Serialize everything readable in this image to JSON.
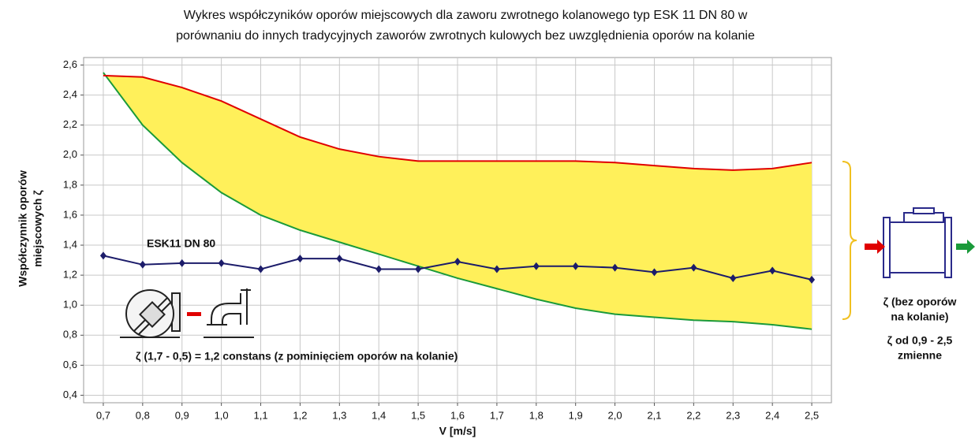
{
  "chart_data": {
    "type": "line",
    "title": [
      "Wykres współczyników oporów miejscowych dla zaworu zwrotnego kolanowego typ ESK 11 DN 80 w",
      "porównaniu do innych tradycyjnych zaworów zwrotnych kulowych bez uwzględnienia oporów na kolanie"
    ],
    "xlabel": "V [m/s]",
    "ylabel": [
      "Współczynnik oporów",
      "miejscowych ζ"
    ],
    "x": [
      0.7,
      0.8,
      0.9,
      1.0,
      1.1,
      1.2,
      1.3,
      1.4,
      1.5,
      1.6,
      1.7,
      1.8,
      1.9,
      2.0,
      2.1,
      2.2,
      2.3,
      2.4,
      2.5
    ],
    "series": [
      {
        "name": "ESK11 DN 80",
        "color": "#1c1c6a",
        "values": [
          1.33,
          1.27,
          1.28,
          1.28,
          1.24,
          1.31,
          1.31,
          1.24,
          1.24,
          1.29,
          1.24,
          1.26,
          1.26,
          1.25,
          1.22,
          1.25,
          1.18,
          1.23,
          1.17
        ]
      },
      {
        "color": "#e00000",
        "values": [
          2.53,
          2.52,
          2.45,
          2.36,
          2.24,
          2.12,
          2.04,
          1.99,
          1.96,
          1.96,
          1.96,
          1.96,
          1.96,
          1.95,
          1.93,
          1.91,
          1.9,
          1.91,
          1.95
        ]
      },
      {
        "color": "#1a9a3a",
        "values": [
          2.55,
          2.2,
          1.95,
          1.75,
          1.6,
          1.5,
          1.42,
          1.34,
          1.26,
          1.18,
          1.11,
          1.04,
          0.98,
          0.94,
          0.92,
          0.9,
          0.89,
          0.87,
          0.84
        ]
      }
    ],
    "range_fill_color": "#fff05a",
    "xlim": [
      0.65,
      2.55
    ],
    "xticks": [
      {
        "value": 0.7,
        "label": "0,7"
      },
      {
        "value": 0.8,
        "label": "0,8"
      },
      {
        "value": 0.9,
        "label": "0,9"
      },
      {
        "value": 1.0,
        "label": "1,0"
      },
      {
        "value": 1.1,
        "label": "1,1"
      },
      {
        "value": 1.2,
        "label": "1,2"
      },
      {
        "value": 1.3,
        "label": "1,3"
      },
      {
        "value": 1.4,
        "label": "1,4"
      },
      {
        "value": 1.5,
        "label": "1,5"
      },
      {
        "value": 1.6,
        "label": "1,6"
      },
      {
        "value": 1.7,
        "label": "1,7"
      },
      {
        "value": 1.8,
        "label": "1,8"
      },
      {
        "value": 1.9,
        "label": "1,9"
      },
      {
        "value": 2.0,
        "label": "2,0"
      },
      {
        "value": 2.1,
        "label": "2,1"
      },
      {
        "value": 2.2,
        "label": "2,2"
      },
      {
        "value": 2.3,
        "label": "2,3"
      },
      {
        "value": 2.4,
        "label": "2,4"
      },
      {
        "value": 2.5,
        "label": "2,5"
      }
    ],
    "ylim": [
      0.35,
      2.65
    ],
    "yticks": [
      {
        "value": 0.4,
        "label": "0,4"
      },
      {
        "value": 0.6,
        "label": "0,6"
      },
      {
        "value": 0.8,
        "label": "0,8"
      },
      {
        "value": 1.0,
        "label": "1,0"
      },
      {
        "value": 1.2,
        "label": "1,2"
      },
      {
        "value": 1.4,
        "label": "1,4"
      },
      {
        "value": 1.6,
        "label": "1,6"
      },
      {
        "value": 1.8,
        "label": "1,8"
      },
      {
        "value": 2.0,
        "label": "2,0"
      },
      {
        "value": 2.2,
        "label": "2,2"
      },
      {
        "value": 2.4,
        "label": "2,4"
      },
      {
        "value": 2.6,
        "label": "2,6"
      }
    ],
    "grid": true,
    "annotations": [
      "ESK11 DN 80",
      "ζ (1,7  -  0,5) =   1,2  constans (z pominięciem oporów na kolanie)"
    ],
    "side_notes": [
      "ζ (bez oporów",
      "na kolanie)",
      "ζ od  0,9 - 2,5",
      "zmienne"
    ]
  }
}
